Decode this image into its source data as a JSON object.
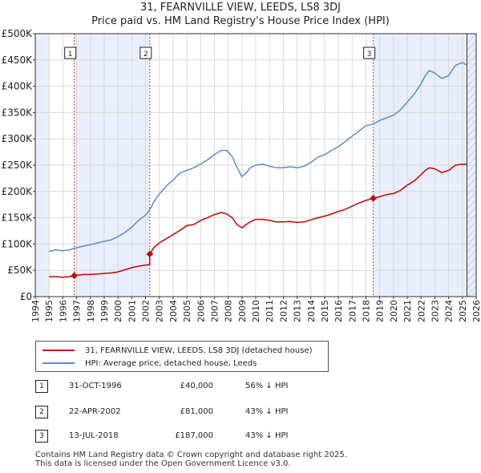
{
  "title": "31, FEARNVILLE VIEW, LEEDS, LS8 3DJ",
  "subtitle": "Price paid vs. HM Land Registry's House Price Index (HPI)",
  "colors": {
    "price_line": "#cc0000",
    "hpi_line": "#5b8ec4",
    "shade": "#e8eefb",
    "vline": "#cc4444",
    "grid": "#d9d9d9",
    "marker": "#cc0000"
  },
  "chart_data": {
    "type": "line",
    "xlim": [
      1994,
      2026
    ],
    "ylim": [
      0,
      500000
    ],
    "y_ticks": [
      0,
      50000,
      100000,
      150000,
      200000,
      250000,
      300000,
      350000,
      400000,
      450000,
      500000
    ],
    "y_tick_labels": [
      "£0",
      "£50K",
      "£100K",
      "£150K",
      "£200K",
      "£250K",
      "£300K",
      "£350K",
      "£400K",
      "£450K",
      "£500K"
    ],
    "x_ticks": [
      1994,
      1995,
      1996,
      1997,
      1998,
      1999,
      2000,
      2001,
      2002,
      2003,
      2004,
      2005,
      2006,
      2007,
      2008,
      2009,
      2010,
      2011,
      2012,
      2013,
      2014,
      2015,
      2016,
      2017,
      2018,
      2019,
      2020,
      2021,
      2022,
      2023,
      2024,
      2025,
      2026
    ],
    "x_tick_labels": [
      "1994",
      "1995",
      "1996",
      "1997",
      "1998",
      "1999",
      "2000",
      "2001",
      "2002",
      "2003",
      "2004",
      "2005",
      "2006",
      "2007",
      "2008",
      "2009",
      "2010",
      "2011",
      "2012",
      "2013",
      "2014",
      "2015",
      "2016",
      "2017",
      "2018",
      "2019",
      "2020",
      "2021",
      "2022",
      "2023",
      "2024",
      "2025",
      "2026"
    ],
    "shaded_ranges": [
      [
        1994,
        1995
      ],
      [
        1996.83,
        2002.31
      ],
      [
        2018.53,
        2025.33
      ],
      [
        2025.33,
        2026
      ]
    ],
    "series": [
      {
        "name": "HPI: Average price, detached house, Leeds",
        "x": [
          1995.0,
          1995.5,
          1996.0,
          1996.5,
          1996.83,
          1997.5,
          1998.0,
          1998.5,
          1999.0,
          1999.5,
          2000.0,
          2000.5,
          2001.0,
          2001.5,
          2002.0,
          2002.31,
          2002.6,
          2003.0,
          2003.5,
          2004.0,
          2004.5,
          2005.0,
          2005.5,
          2006.0,
          2006.5,
          2007.0,
          2007.5,
          2007.9,
          2008.3,
          2008.6,
          2009.0,
          2009.3,
          2009.6,
          2010.0,
          2010.5,
          2011.0,
          2011.5,
          2012.0,
          2012.5,
          2013.0,
          2013.5,
          2014.0,
          2014.5,
          2015.0,
          2015.5,
          2016.0,
          2016.5,
          2017.0,
          2017.5,
          2018.0,
          2018.53,
          2019.0,
          2019.5,
          2020.0,
          2020.5,
          2021.0,
          2021.5,
          2022.0,
          2022.3,
          2022.6,
          2023.0,
          2023.5,
          2024.0,
          2024.5,
          2025.0,
          2025.33
        ],
        "values": [
          86000,
          89000,
          87000,
          89000,
          92000,
          96000,
          99000,
          102000,
          105000,
          108000,
          114000,
          122000,
          132000,
          145000,
          155000,
          165000,
          180000,
          195000,
          210000,
          222000,
          235000,
          240000,
          245000,
          252000,
          260000,
          270000,
          278000,
          278000,
          266000,
          248000,
          228000,
          235000,
          245000,
          250000,
          252000,
          248000,
          245000,
          245000,
          247000,
          245000,
          248000,
          255000,
          265000,
          270000,
          278000,
          285000,
          295000,
          305000,
          315000,
          325000,
          328000,
          335000,
          340000,
          345000,
          355000,
          370000,
          385000,
          405000,
          420000,
          430000,
          425000,
          415000,
          420000,
          440000,
          445000,
          440000
        ]
      },
      {
        "name": "31, FEARNVILLE VIEW, LEEDS, LS8 3DJ (detached house)",
        "x": [
          1995.0,
          1995.5,
          1996.0,
          1996.5,
          1996.83,
          1997.5,
          1998.0,
          1998.5,
          1999.0,
          1999.5,
          2000.0,
          2000.5,
          2001.0,
          2001.5,
          2002.0,
          2002.3,
          2002.31,
          2002.6,
          2003.0,
          2003.5,
          2004.0,
          2004.5,
          2005.0,
          2005.5,
          2006.0,
          2006.5,
          2007.0,
          2007.5,
          2007.9,
          2008.3,
          2008.6,
          2009.0,
          2009.3,
          2009.6,
          2010.0,
          2010.5,
          2011.0,
          2011.5,
          2012.0,
          2012.5,
          2013.0,
          2013.5,
          2014.0,
          2014.5,
          2015.0,
          2015.5,
          2016.0,
          2016.5,
          2017.0,
          2017.5,
          2018.0,
          2018.53,
          2019.0,
          2019.5,
          2020.0,
          2020.5,
          2021.0,
          2021.5,
          2022.0,
          2022.3,
          2022.6,
          2023.0,
          2023.5,
          2024.0,
          2024.5,
          2025.0,
          2025.33
        ],
        "values": [
          38000,
          38000,
          37000,
          38000,
          40000,
          42000,
          42000,
          43000,
          44000,
          45000,
          47000,
          51000,
          55000,
          58000,
          60000,
          61000,
          81000,
          93000,
          102000,
          110000,
          118000,
          126000,
          135000,
          137000,
          145000,
          150000,
          156000,
          160000,
          157000,
          150000,
          138000,
          131000,
          137000,
          142000,
          147000,
          147000,
          145000,
          142000,
          142000,
          143000,
          141000,
          142000,
          146000,
          150000,
          153000,
          157000,
          162000,
          166000,
          172000,
          178000,
          183000,
          187000,
          190000,
          194000,
          196000,
          202000,
          212000,
          220000,
          232000,
          240000,
          245000,
          243000,
          236000,
          240000,
          250000,
          252000,
          251000
        ]
      }
    ],
    "sales": [
      {
        "id": "1",
        "x": 1996.83,
        "value": 40000
      },
      {
        "id": "2",
        "x": 2002.31,
        "value": 81000
      },
      {
        "id": "3",
        "x": 2018.53,
        "value": 187000
      }
    ]
  },
  "legend": {
    "property_label": "31, FEARNVILLE VIEW, LEEDS, LS8 3DJ (detached house)",
    "hpi_label": "HPI: Average price, detached house, Leeds"
  },
  "transactions": [
    {
      "num": "1",
      "date": "31-OCT-1996",
      "price": "£40,000",
      "hpi": "56% ↓ HPI"
    },
    {
      "num": "2",
      "date": "22-APR-2002",
      "price": "£81,000",
      "hpi": "43% ↓ HPI"
    },
    {
      "num": "3",
      "date": "13-JUL-2018",
      "price": "£187,000",
      "hpi": "43% ↓ HPI"
    }
  ],
  "footer": {
    "line1": "Contains HM Land Registry data © Crown copyright and database right 2025.",
    "line2": "This data is licensed under the Open Government Licence v3.0."
  }
}
